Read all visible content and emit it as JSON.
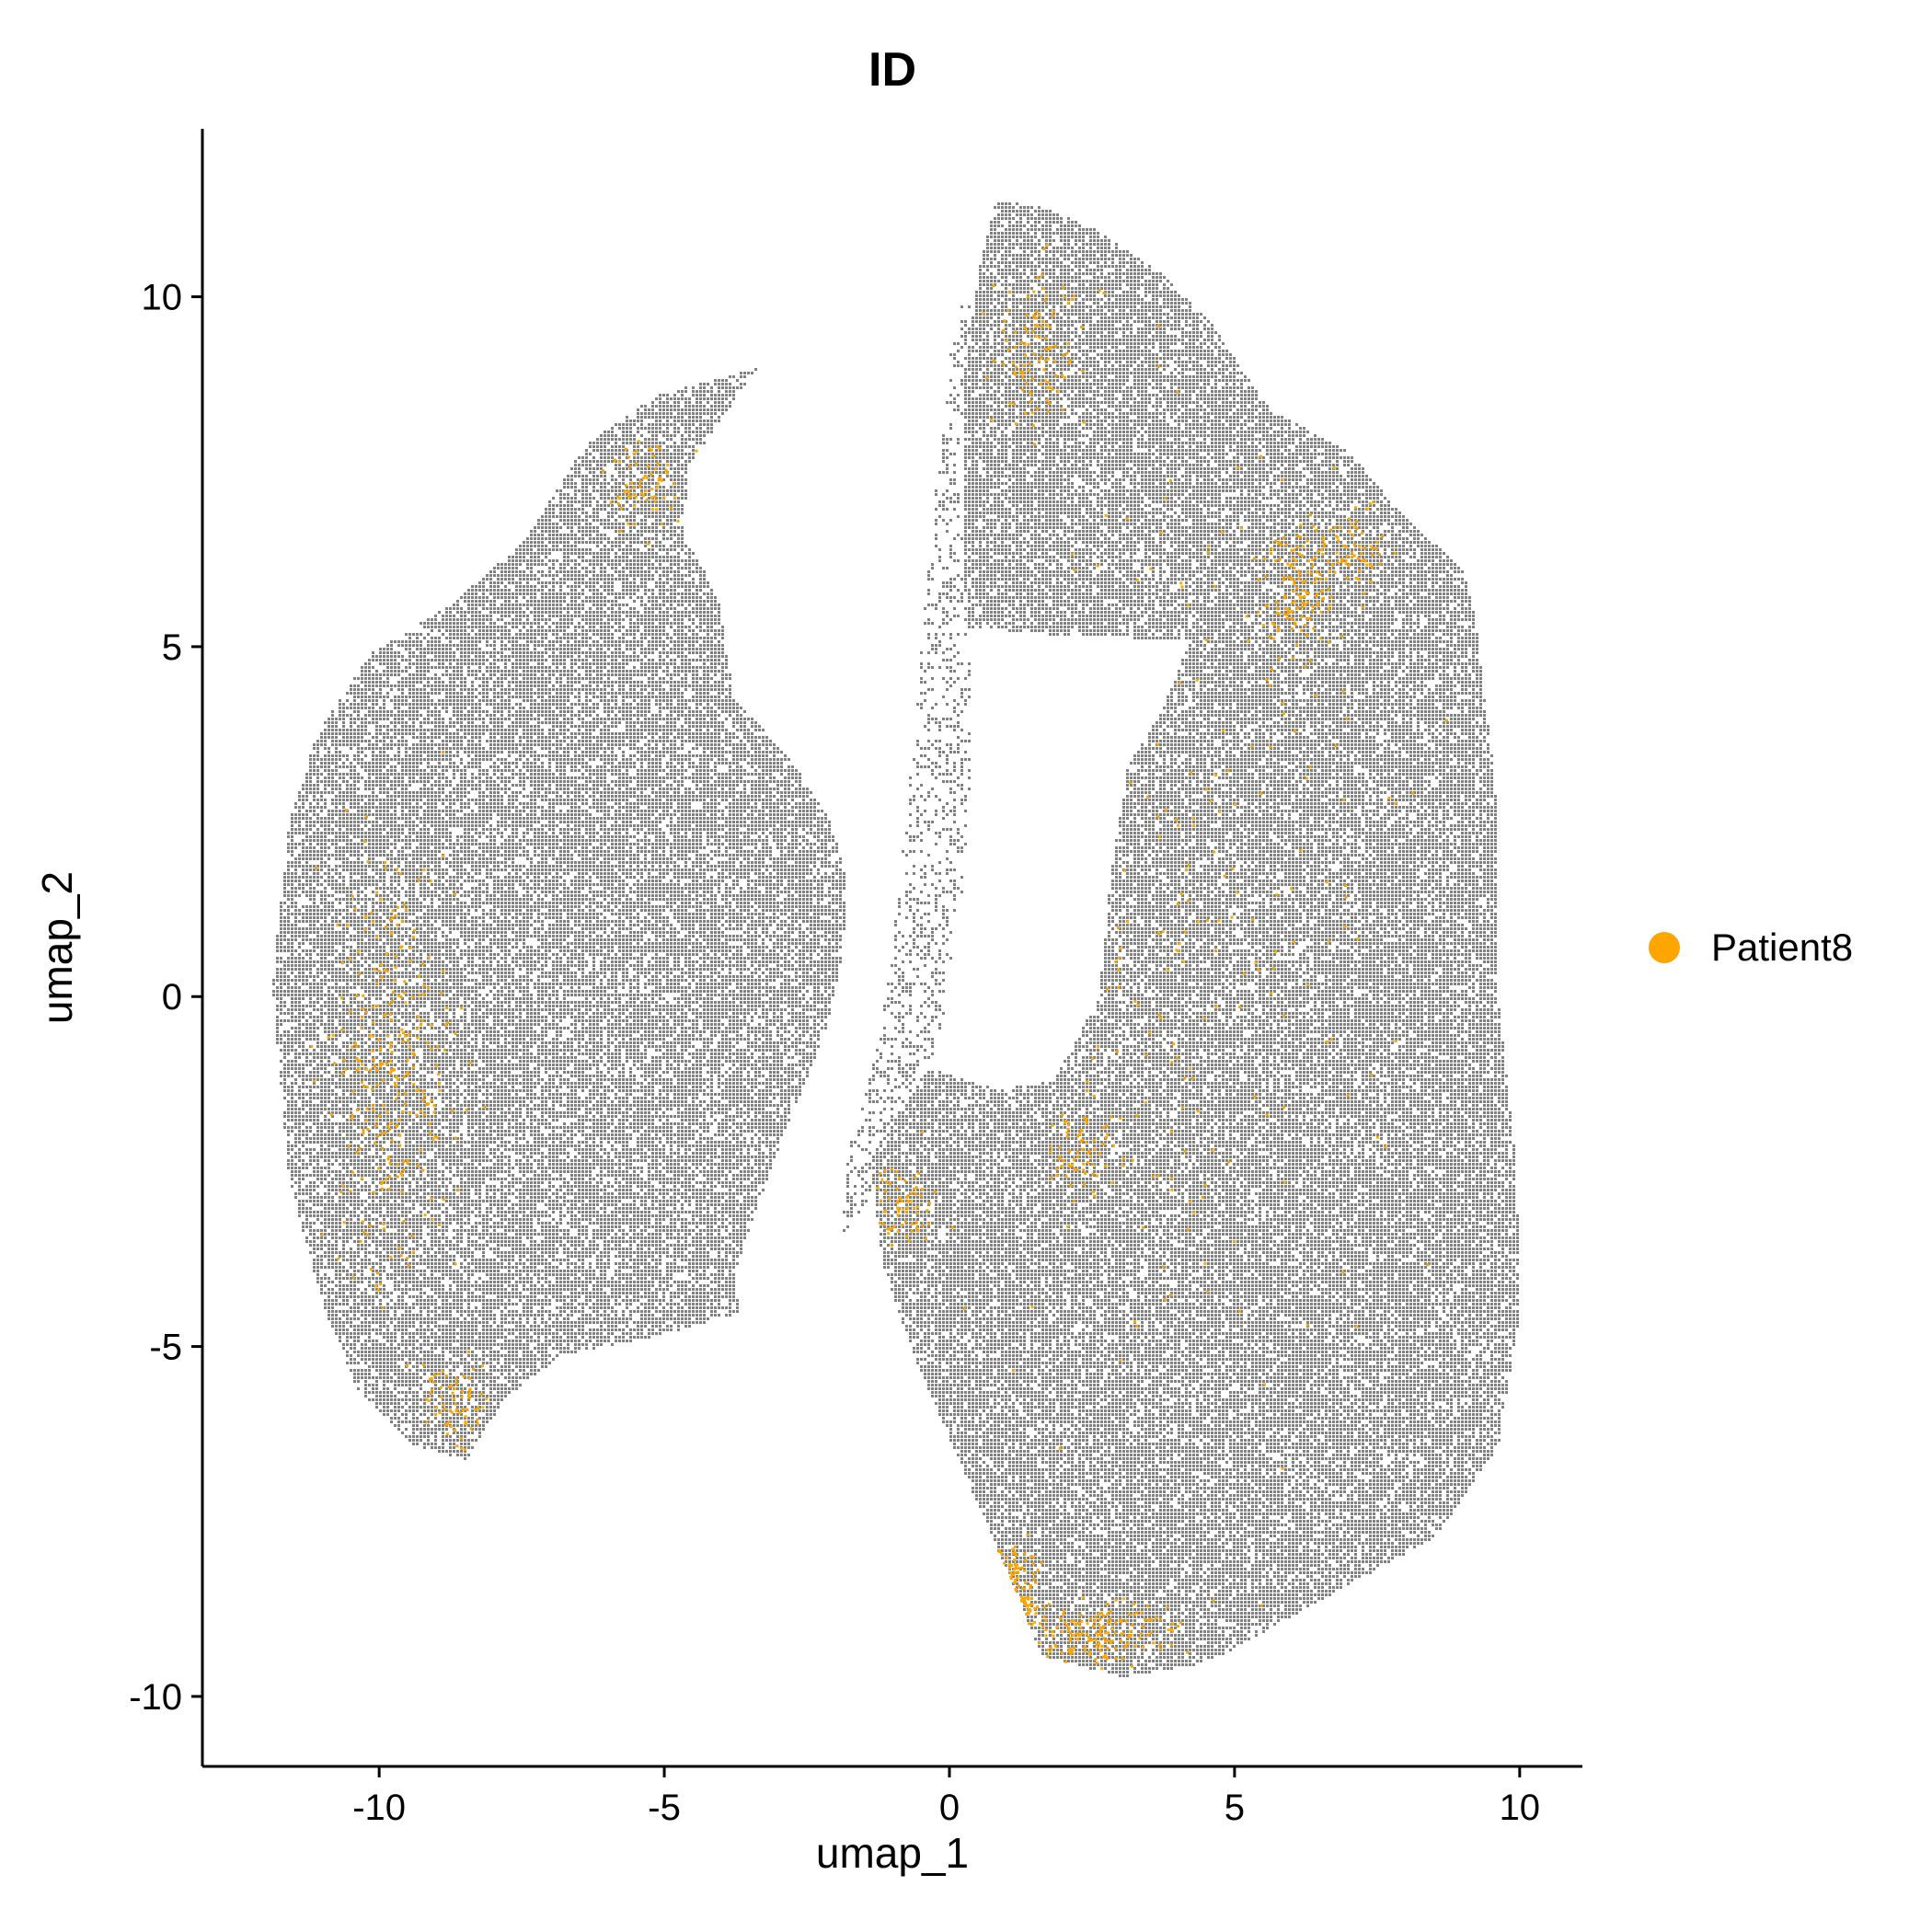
{
  "colors": {
    "background": "#ffffff",
    "other_cells": "#808080",
    "highlight": "#FFA500",
    "axis": "#000000"
  },
  "chart_data": {
    "type": "scatter",
    "title": "ID",
    "xlabel": "umap_1",
    "ylabel": "umap_2",
    "xlim": [
      -13.1,
      11.1
    ],
    "ylim": [
      -11.0,
      12.4
    ],
    "x_ticks": [
      -10,
      -5,
      0,
      5,
      10
    ],
    "y_ticks": [
      -10,
      -5,
      0,
      5,
      10
    ],
    "x_tick_labels": [
      "-10",
      "-5",
      "0",
      "5",
      "10"
    ],
    "y_tick_labels": [
      "-10",
      "-5",
      "0",
      "5",
      "10"
    ],
    "grid": false,
    "legend_position": "right",
    "series": [
      {
        "name": "Patient8",
        "color": "#FFA500"
      }
    ],
    "background_cells_color": "#808080",
    "cluster_outlines": [
      {
        "region": "left lobe",
        "points": [
          [
            -11.9,
            0.2
          ],
          [
            -11.6,
            2.5
          ],
          [
            -11.1,
            3.8
          ],
          [
            -10.2,
            4.9
          ],
          [
            -8.8,
            5.6
          ],
          [
            -7.5,
            6.5
          ],
          [
            -6.4,
            7.9
          ],
          [
            -5.2,
            8.6
          ],
          [
            -3.4,
            9.0
          ],
          [
            -4.6,
            7.6
          ],
          [
            -4.7,
            6.6
          ],
          [
            -4.1,
            5.8
          ],
          [
            -3.8,
            4.3
          ],
          [
            -2.8,
            3.4
          ],
          [
            -2.1,
            2.5
          ],
          [
            -1.8,
            1.6
          ],
          [
            -1.9,
            0.6
          ],
          [
            -2.2,
            -0.5
          ],
          [
            -2.8,
            -1.7
          ],
          [
            -3.5,
            -3.2
          ],
          [
            -3.8,
            -4.0
          ],
          [
            -3.7,
            -4.5
          ],
          [
            -5.0,
            -4.8
          ],
          [
            -6.8,
            -5.1
          ],
          [
            -7.8,
            -5.7
          ],
          [
            -8.5,
            -6.6
          ],
          [
            -9.4,
            -6.4
          ],
          [
            -10.4,
            -5.6
          ],
          [
            -11.0,
            -4.4
          ],
          [
            -11.6,
            -2.6
          ]
        ]
      },
      {
        "region": "right lobe",
        "points": [
          [
            -1.4,
            -2.3
          ],
          [
            -1.2,
            -3.8
          ],
          [
            -0.6,
            -5.2
          ],
          [
            0.3,
            -6.9
          ],
          [
            1.0,
            -8.2
          ],
          [
            1.6,
            -9.4
          ],
          [
            3.0,
            -9.7
          ],
          [
            4.5,
            -9.5
          ],
          [
            6.5,
            -8.6
          ],
          [
            8.5,
            -7.7
          ],
          [
            9.6,
            -6.4
          ],
          [
            10.0,
            -4.4
          ],
          [
            9.9,
            -2.3
          ],
          [
            9.6,
            0.0
          ],
          [
            9.6,
            2.7
          ],
          [
            9.2,
            5.4
          ],
          [
            9.0,
            6.1
          ],
          [
            7.8,
            7.0
          ],
          [
            7.0,
            7.8
          ],
          [
            5.6,
            8.4
          ],
          [
            4.6,
            9.6
          ],
          [
            3.8,
            10.3
          ],
          [
            2.5,
            11.0
          ],
          [
            1.6,
            11.3
          ],
          [
            0.8,
            11.4
          ],
          [
            0.5,
            10.4
          ],
          [
            0.2,
            8.6
          ],
          [
            0.2,
            6.5
          ],
          [
            0.3,
            5.3
          ],
          [
            1.6,
            5.2
          ],
          [
            4.2,
            5.1
          ],
          [
            3.7,
            4.1
          ],
          [
            3.1,
            3.3
          ],
          [
            2.8,
            1.7
          ],
          [
            2.6,
            0.0
          ],
          [
            1.8,
            -1.2
          ],
          [
            0.8,
            -1.3
          ],
          [
            -0.4,
            -1.0
          ]
        ]
      },
      {
        "region": "center bridge",
        "points": [
          [
            -0.8,
            -1.8
          ],
          [
            -0.2,
            -0.6
          ],
          [
            0.2,
            1.5
          ],
          [
            0.4,
            3.5
          ],
          [
            0.3,
            5.6
          ],
          [
            0.1,
            7.6
          ],
          [
            0.4,
            9.6
          ],
          [
            0.3,
            10.3
          ],
          [
            0.0,
            9.2
          ],
          [
            -0.3,
            7.0
          ],
          [
            -0.6,
            4.2
          ],
          [
            -0.9,
            1.6
          ],
          [
            -1.3,
            -0.8
          ],
          [
            -1.8,
            -2.2
          ],
          [
            -1.9,
            -3.4
          ],
          [
            -1.3,
            -2.7
          ]
        ]
      }
    ],
    "highlight_regions": [
      {
        "center": [
          -9.8,
          -1.0
        ],
        "spread": [
          0.9,
          2.4
        ],
        "share": 0.22
      },
      {
        "center": [
          -8.7,
          -5.8
        ],
        "spread": [
          0.5,
          0.5
        ],
        "share": 0.05
      },
      {
        "center": [
          -5.3,
          7.4
        ],
        "spread": [
          0.6,
          0.5
        ],
        "share": 0.05
      },
      {
        "center": [
          6.1,
          5.8
        ],
        "spread": [
          0.6,
          0.9
        ],
        "share": 0.1
      },
      {
        "center": [
          1.5,
          9.2
        ],
        "spread": [
          0.7,
          0.9
        ],
        "share": 0.08
      },
      {
        "center": [
          2.6,
          -9.1
        ],
        "spread": [
          1.2,
          0.4
        ],
        "share": 0.12
      },
      {
        "center": [
          1.1,
          -8.6
        ],
        "spread": [
          0.4,
          0.6
        ],
        "share": 0.06
      },
      {
        "center": [
          -0.8,
          -3.0
        ],
        "spread": [
          0.5,
          0.5
        ],
        "share": 0.05
      },
      {
        "center": [
          2.2,
          -2.1
        ],
        "spread": [
          0.5,
          0.6
        ],
        "share": 0.05
      },
      {
        "center": [
          7.0,
          6.4
        ],
        "spread": [
          0.6,
          0.5
        ],
        "share": 0.05
      },
      {
        "center": [
          -2.8,
          7.5
        ],
        "spread": [
          0.3,
          0.4
        ],
        "share": 0.03
      },
      {
        "center": [
          4.0,
          2.0
        ],
        "spread": [
          3.0,
          6.5
        ],
        "share": 0.14
      }
    ]
  }
}
